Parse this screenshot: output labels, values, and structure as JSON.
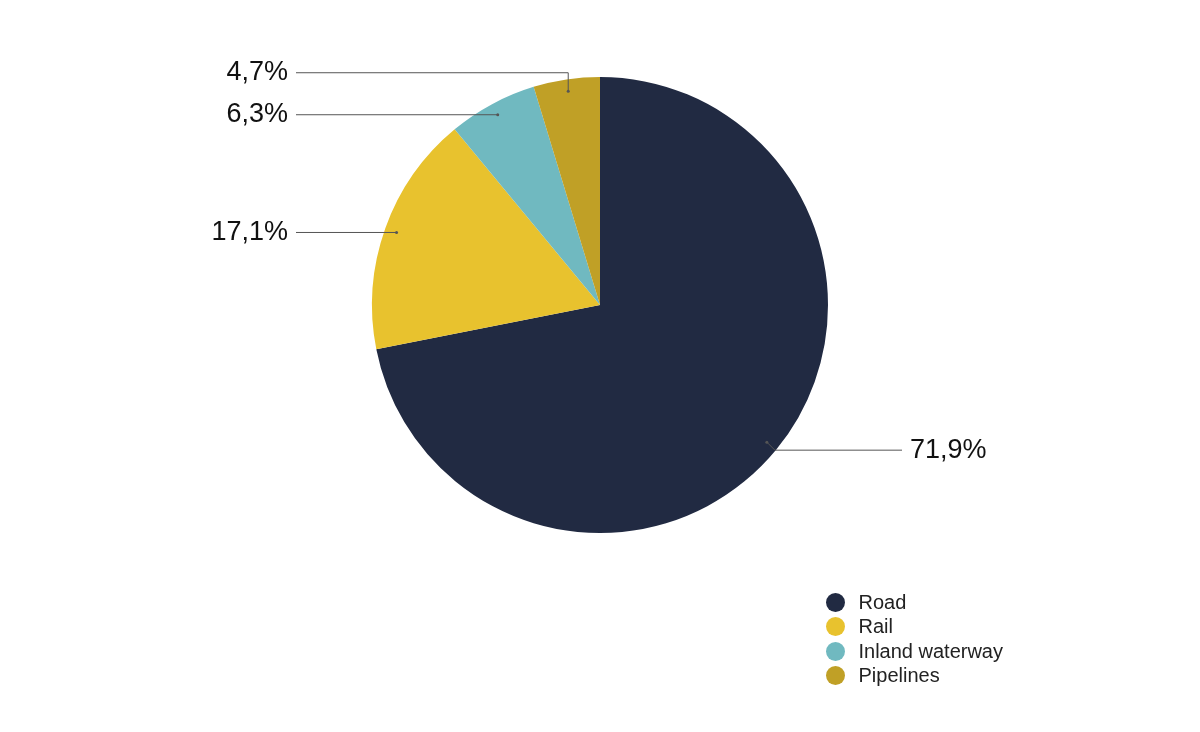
{
  "chart_data": {
    "type": "pie",
    "categories": [
      "Road",
      "Rail",
      "Inland waterway",
      "Pipelines"
    ],
    "values": [
      71.9,
      17.1,
      6.3,
      4.7
    ],
    "value_labels": [
      "71,9%",
      "17,1%",
      "6,3%",
      "4,7%"
    ],
    "colors": [
      "#212a42",
      "#e8c22e",
      "#70b9c0",
      "#c0a026"
    ],
    "data_labels": true,
    "legend": "bottom-right"
  }
}
